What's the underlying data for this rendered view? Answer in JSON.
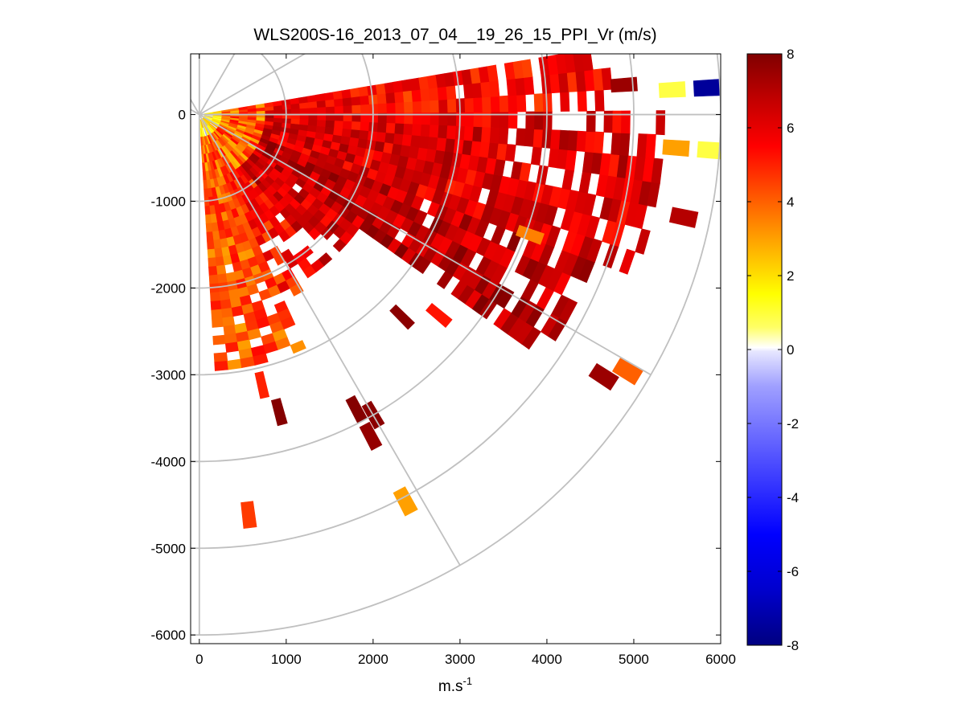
{
  "chart_data": {
    "type": "heatmap",
    "subtype": "polar-ppi-scan",
    "title": "WLS200S-16_2013_07_04__19_26_15_PPI_Vr (m/s)",
    "xlabel_base": "m.s",
    "xlabel_exp": "-1",
    "ylabel": "",
    "xlim": [
      -100,
      6000
    ],
    "ylim": [
      -6100,
      700
    ],
    "x_ticks": [
      0,
      1000,
      2000,
      3000,
      4000,
      5000,
      6000
    ],
    "x_tick_labels": [
      "0",
      "1000",
      "2000",
      "3000",
      "4000",
      "5000",
      "6000"
    ],
    "y_ticks": [
      0,
      -1000,
      -2000,
      -3000,
      -4000,
      -5000,
      -6000
    ],
    "y_tick_labels": [
      "0",
      "-1000",
      "-2000",
      "-3000",
      "-4000",
      "-5000",
      "-6000"
    ],
    "polar_grid": {
      "range_rings": [
        1000,
        2000,
        3000,
        4000,
        5000,
        6000
      ],
      "spokes_deg": [
        0,
        30,
        60,
        90,
        120,
        150,
        -30,
        -60,
        -90
      ],
      "color": "#c0c0c0"
    },
    "colorbar": {
      "min": -8,
      "max": 8,
      "ticks": [
        8,
        6,
        4,
        2,
        0,
        -2,
        -4,
        -6,
        -8
      ],
      "tick_labels": [
        "8",
        "6",
        "4",
        "2",
        "0",
        "-2",
        "-4",
        "-6",
        "-8"
      ],
      "stops": [
        {
          "v": -8,
          "color": "#000080"
        },
        {
          "v": -6.5,
          "color": "#0000cd"
        },
        {
          "v": -5,
          "color": "#0000ff"
        },
        {
          "v": -3,
          "color": "#4f4fff"
        },
        {
          "v": -1,
          "color": "#9f9fff"
        },
        {
          "v": -0.05,
          "color": "#e6e6ff"
        },
        {
          "v": 0.05,
          "color": "#ffffff"
        },
        {
          "v": 0.6,
          "color": "#ffff66"
        },
        {
          "v": 1.5,
          "color": "#ffff00"
        },
        {
          "v": 3,
          "color": "#ffa000"
        },
        {
          "v": 4.5,
          "color": "#ff4000"
        },
        {
          "v": 5.5,
          "color": "#ff0000"
        },
        {
          "v": 6.8,
          "color": "#c00000"
        },
        {
          "v": 8,
          "color": "#800000"
        }
      ]
    },
    "scan": {
      "azimuth_start_deg": -85,
      "azimuth_end_deg": 8,
      "azimuth_step_deg": 3,
      "gate_start_m": 60,
      "gate_step_m": 100,
      "gate_count": 60
    },
    "velocity_field": {
      "description": "Radial velocity Vr in m/s; positive (red) dominates, near-zero values close to the lidar, sparse distant returns",
      "sectors": [
        {
          "az_range": [
            -85,
            -65
          ],
          "max_range_m": 2950,
          "mean_vr": 4.2
        },
        {
          "az_range": [
            -65,
            -50
          ],
          "max_range_m": 2300,
          "mean_vr": 5.2
        },
        {
          "az_range": [
            -50,
            -35
          ],
          "max_range_m": 2200,
          "mean_vr": 6.4
        },
        {
          "az_range": [
            -35,
            -20
          ],
          "max_range_m": 4800,
          "mean_vr": 6.8
        },
        {
          "az_range": [
            -20,
            0
          ],
          "max_range_m": 5300,
          "mean_vr": 6.2
        },
        {
          "az_range": [
            0,
            8
          ],
          "max_range_m": 4700,
          "mean_vr": 5.5
        }
      ],
      "isolated_returns": [
        {
          "az_deg": -83,
          "range_m": 4650,
          "vr": 4.6
        },
        {
          "az_deg": -62,
          "range_m": 5050,
          "vr": 3.0
        },
        {
          "az_deg": -62,
          "range_m": 4200,
          "vr": 7.6
        },
        {
          "az_deg": -60,
          "range_m": 4000,
          "vr": 7.8
        },
        {
          "az_deg": -62,
          "range_m": 3850,
          "vr": 7.9
        },
        {
          "az_deg": -75,
          "range_m": 3550,
          "vr": 7.9
        },
        {
          "az_deg": -77,
          "range_m": 3200,
          "vr": 5.0
        },
        {
          "az_deg": -45,
          "range_m": 3300,
          "vr": 7.8
        },
        {
          "az_deg": -40,
          "range_m": 3600,
          "vr": 5.2
        },
        {
          "az_deg": -33,
          "range_m": 5550,
          "vr": 7.5
        },
        {
          "az_deg": -31,
          "range_m": 5750,
          "vr": 4.0
        },
        {
          "az_deg": -20,
          "range_m": 4050,
          "vr": 3.5
        },
        {
          "az_deg": -12,
          "range_m": 5700,
          "vr": 7.0
        },
        {
          "az_deg": -4,
          "range_m": 5500,
          "vr": 3.0
        },
        {
          "az_deg": -4,
          "range_m": 5900,
          "vr": 0.9
        },
        {
          "az_deg": 3,
          "range_m": 5450,
          "vr": 0.9
        },
        {
          "az_deg": 3,
          "range_m": 5850,
          "vr": -7.5
        },
        {
          "az_deg": 4,
          "range_m": 4900,
          "vr": 7.5
        }
      ]
    }
  }
}
